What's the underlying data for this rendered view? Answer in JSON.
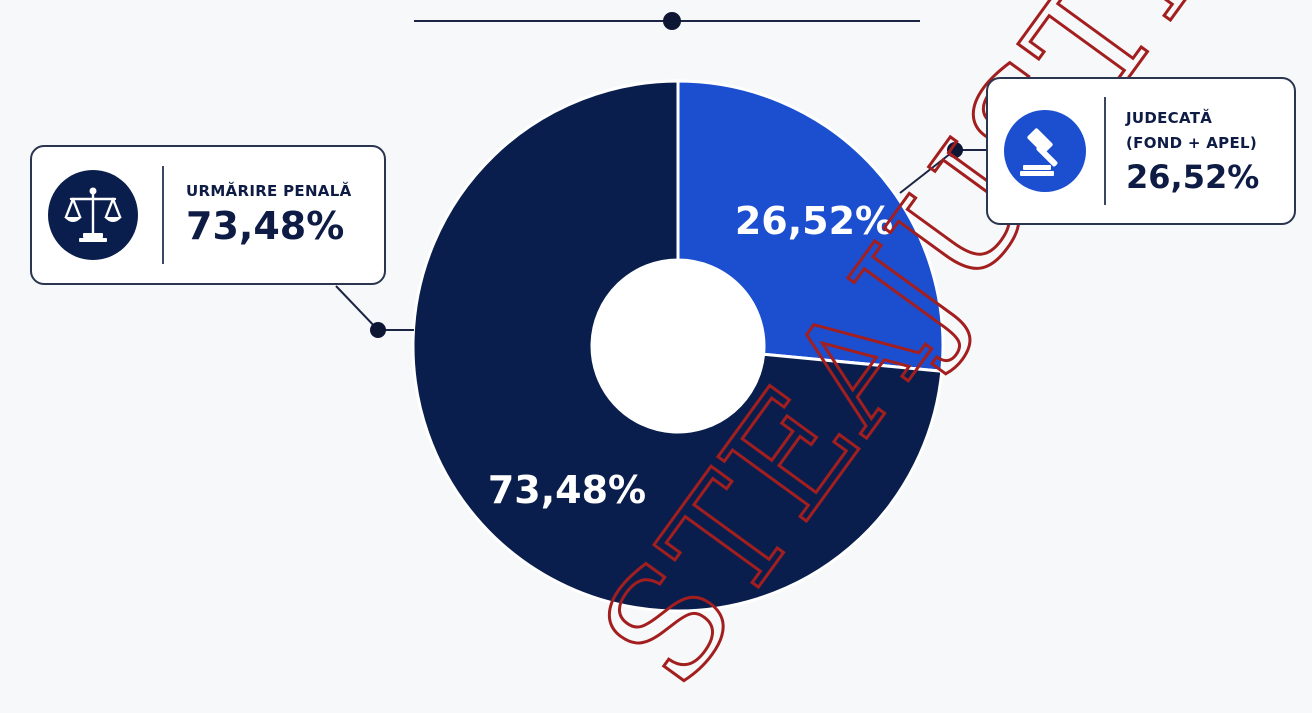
{
  "colors": {
    "primary": "#0a1e4d",
    "secondary": "#1b4fd0",
    "line": "#1c2544",
    "watermark": "#a31f1f"
  },
  "chart_data": {
    "type": "pie",
    "donut": true,
    "slices": [
      {
        "label": "URMĂRIRE PENALĂ",
        "value": 73.48,
        "display": "73,48%",
        "color": "#0a1e4d"
      },
      {
        "label": "JUDECATĂ (FOND + APEL)",
        "value": 26.52,
        "display": "26,52%",
        "color": "#1b4fd0"
      }
    ]
  },
  "callouts": {
    "left": {
      "title": "URMĂRIRE PENALĂ",
      "value": "73,48%",
      "icon": "scales-of-justice-icon"
    },
    "right": {
      "title_line1": "JUDECATĂ",
      "title_line2": "(FOND + APEL)",
      "value": "26,52%",
      "icon": "gavel-icon"
    }
  },
  "watermark": {
    "text": "STEAJUSTITIEI"
  }
}
